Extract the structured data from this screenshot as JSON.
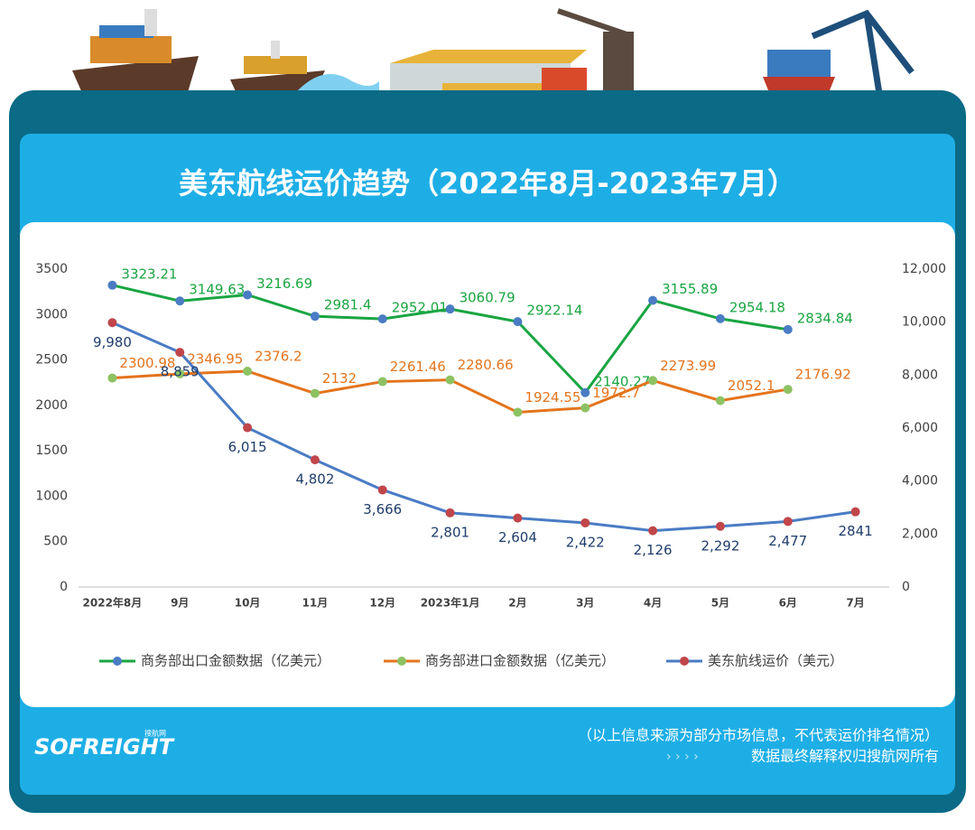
{
  "chart_data": {
    "type": "line",
    "title": "美东航线运价趋势（2022年8月-2023年7月）",
    "categories": [
      "2022年8月",
      "9月",
      "10月",
      "11月",
      "12月",
      "2023年1月",
      "2月",
      "3月",
      "4月",
      "5月",
      "6月",
      "7月"
    ],
    "series": [
      {
        "name": "商务部出口金额数据（亿美元）",
        "color": "#1aa542",
        "marker_color": "#4a7cc4",
        "label_color": "#1aa542",
        "values": [
          3323.21,
          3149.63,
          3216.69,
          2981.4,
          2952.01,
          3060.79,
          2922.14,
          2140.27,
          3155.89,
          2954.18,
          2834.84,
          null
        ]
      },
      {
        "name": "商务部进口金额数据（亿美元）",
        "color": "#e3741d",
        "marker_color": "#8dc263",
        "label_color": "#e3741d",
        "values": [
          2300.98,
          2346.95,
          2376.2,
          2132,
          2261.46,
          2280.66,
          1924.55,
          1972.7,
          2273.99,
          2052.1,
          2176.92,
          null
        ]
      },
      {
        "name": "美东航线运价（美元）",
        "color": "#4a7cc4",
        "marker_color": "#c0464a",
        "label_color": "#1f3d6b",
        "axis": "y2",
        "values": [
          9980,
          8859,
          6015,
          4802,
          3666,
          2801,
          2604,
          2422,
          2126,
          2292,
          2477,
          2841
        ],
        "value_labels": [
          "9,980",
          "8,859",
          "6,015",
          "4,802",
          "3,666",
          "2,801",
          "2,604",
          "2,422",
          "2,126",
          "2,292",
          "2,477",
          "2841"
        ]
      }
    ],
    "ylim": [
      0,
      3500
    ],
    "yticks": [
      0,
      500,
      1000,
      1500,
      2000,
      2500,
      3000,
      3500
    ],
    "y2lim": [
      0,
      12000
    ],
    "y2ticks": [
      0,
      {
        "value": 2000,
        "label": "2,000"
      },
      {
        "value": 4000,
        "label": "4,000"
      },
      {
        "value": 6000,
        "label": "6,000"
      },
      {
        "value": 8000,
        "label": "8,000"
      },
      {
        "value": 10000,
        "label": "10,000"
      },
      {
        "value": 12000,
        "label": "12,000"
      }
    ],
    "grid": false,
    "legend": "bottom"
  },
  "footer": {
    "logo": "SOFREIGHT",
    "logo_sub": "搜航网",
    "note": "（以上信息来源为部分市场信息，不代表运价排名情况）",
    "rights": "数据最终解释权归搜航网所有"
  }
}
